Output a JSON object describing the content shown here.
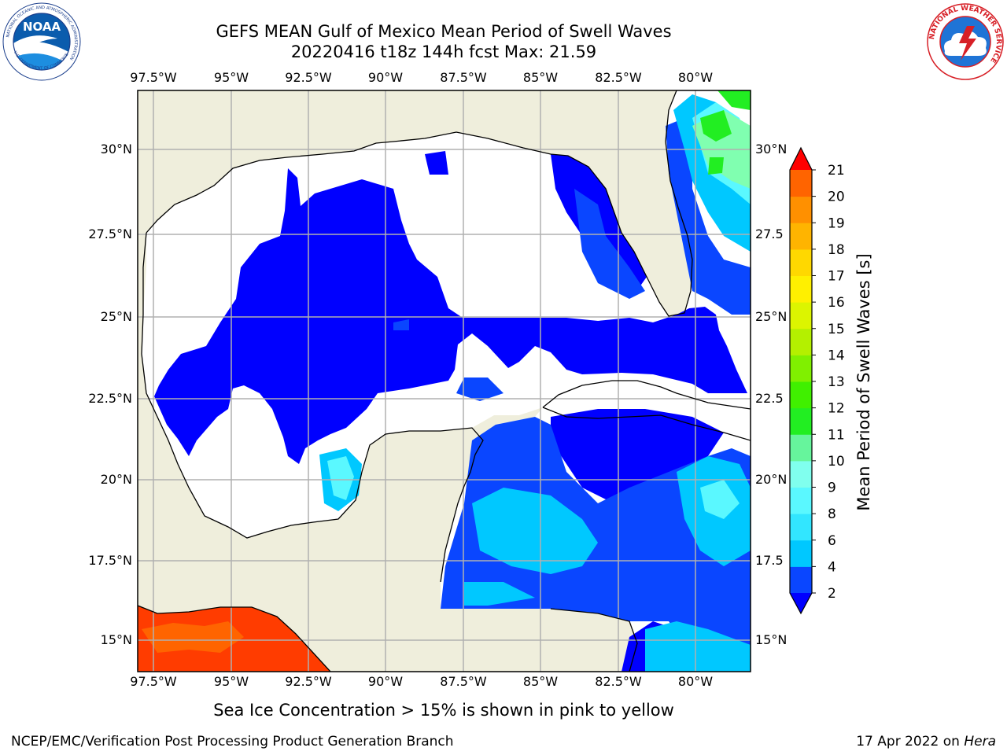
{
  "title": {
    "line1": "GEFS MEAN Gulf of Mexico Mean Period of Swell Waves",
    "line2": "20220416 t18z 144h fcst   Max: 21.59"
  },
  "logos": {
    "noaa_text": "NOAA",
    "noaa_ring": "NATIONAL OCEANIC AND ATMOSPHERIC ADMINISTRATION",
    "noaa_ring_bottom": "U.S. DEPARTMENT OF COMMERCE",
    "nws_ring": "NATIONAL WEATHER SERVICE"
  },
  "map": {
    "lon_ticks_top": [
      "97.5°W",
      "95°W",
      "92.5°W",
      "90°W",
      "87.5°W",
      "85°W",
      "82.5°W",
      "80°W"
    ],
    "lon_ticks_bottom": [
      "97.5°W",
      "95°W",
      "92.5°W",
      "90°W",
      "87.5°W",
      "85°W",
      "82.5°W",
      "80°W"
    ],
    "lat_ticks_left": [
      "30°N",
      "27.5°N",
      "25°N",
      "22.5°N",
      "20°N",
      "17.5°N",
      "15°N"
    ],
    "lat_ticks_right": [
      "30°N",
      "27.5",
      "25°N",
      "22.5",
      "20°N",
      "17.5",
      "15°N"
    ],
    "colors": {
      "land": "#efeedc",
      "ocean_empty": "#ffffff",
      "grid": "#b0b0b0",
      "coast": "#000000"
    }
  },
  "colorbar": {
    "label": "Mean Period of Swell Waves [s]",
    "tick_labels": [
      "2",
      "4",
      "6",
      "8",
      "9",
      "10",
      "11",
      "12",
      "13",
      "14",
      "15",
      "16",
      "17",
      "18",
      "19",
      "20",
      "21"
    ],
    "level_colors": [
      "#0a46ff",
      "#00c8ff",
      "#32e6ff",
      "#5af8ff",
      "#80ffee",
      "#66f59c",
      "#22ee22",
      "#40f000",
      "#80f000",
      "#b4f000",
      "#dcf500",
      "#fff000",
      "#ffd800",
      "#ffb400",
      "#ff9000",
      "#ff6400",
      "#ff3c00"
    ],
    "under_color": "#0000ff",
    "over_color": "#ff0000"
  },
  "caption": "Sea Ice Concentration > 15% is shown in pink to yellow",
  "footer": {
    "left": "NCEP/EMC/Verification Post Processing Product Generation Branch",
    "right_date": "17 Apr 2022 on ",
    "right_host": "Hera"
  }
}
